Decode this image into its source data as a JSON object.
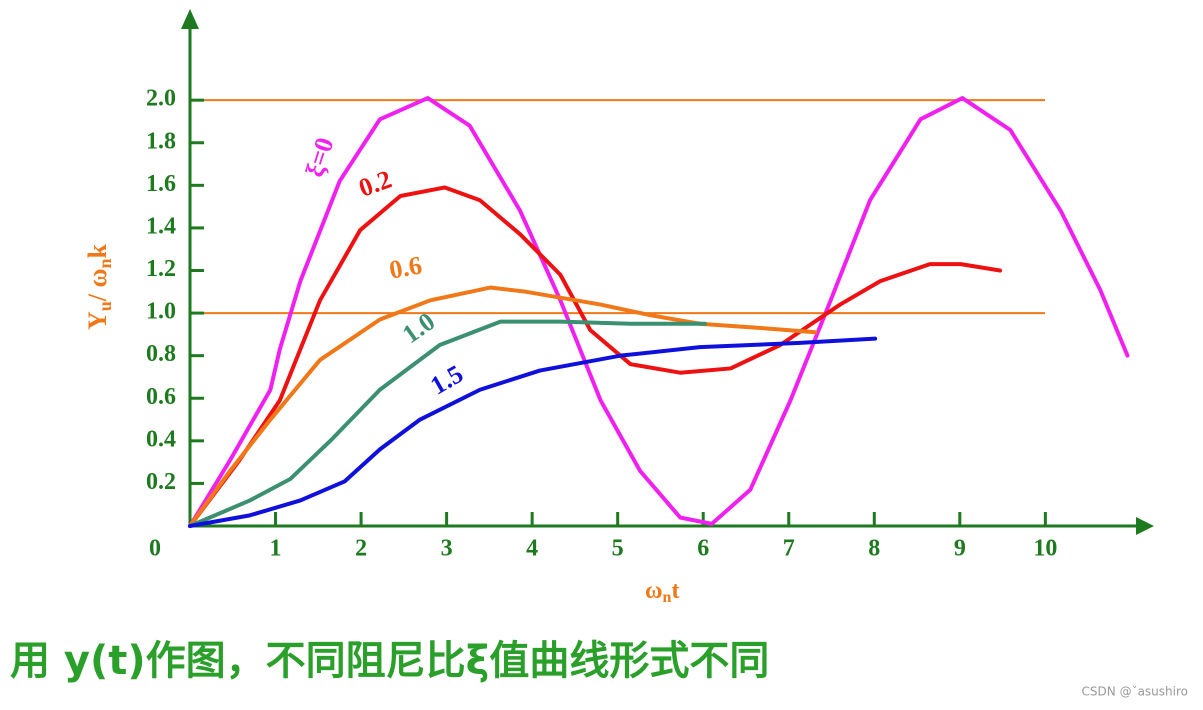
{
  "chart_data": {
    "type": "line",
    "x_label": [
      "ω",
      "n",
      "t"
    ],
    "y_label": [
      "Y",
      "u",
      "/ ω",
      "n",
      "k"
    ],
    "xlim": [
      0,
      11.2
    ],
    "ylim": [
      0,
      2.4
    ],
    "xticks": [
      0,
      1,
      2,
      3,
      4,
      5,
      6,
      7,
      8,
      9,
      10
    ],
    "yticks": [
      0.2,
      0.4,
      0.6,
      0.8,
      {
        "value": 1,
        "label": "1.0"
      },
      1.2,
      1.4,
      1.6,
      1.8,
      {
        "value": 2,
        "label": "2.0"
      }
    ],
    "reference_lines": [
      1,
      2
    ],
    "reference_color": "#f07818",
    "axis_color": "#1e7a1e",
    "series": [
      {
        "name": "ξ=0",
        "color": "#f020f0",
        "x": [
          0,
          0.47,
          0.94,
          1.05,
          1.29,
          1.75,
          2.22,
          2.78,
          3.27,
          3.86,
          4.33,
          4.8,
          5.26,
          5.73,
          6.1,
          6.55,
          7.02,
          7.49,
          7.95,
          8.54,
          9.03,
          9.59,
          10.18,
          10.64,
          10.96
        ],
        "values": [
          0,
          0.31,
          0.64,
          0.83,
          1.15,
          1.62,
          1.91,
          2.01,
          1.88,
          1.48,
          1.06,
          0.59,
          0.26,
          0.04,
          0.01,
          0.17,
          0.59,
          1.06,
          1.53,
          1.91,
          2.01,
          1.86,
          1.48,
          1.11,
          0.8
        ]
      },
      {
        "name": "0.2",
        "color": "#ee1111",
        "x": [
          0,
          0.58,
          1.05,
          1.29,
          1.52,
          1.99,
          2.46,
          2.98,
          3.39,
          3.86,
          4.33,
          4.68,
          5.15,
          5.73,
          6.32,
          6.9,
          7.6,
          8.07,
          8.65,
          9.01,
          9.47
        ],
        "values": [
          0,
          0.31,
          0.59,
          0.83,
          1.06,
          1.39,
          1.55,
          1.59,
          1.53,
          1.37,
          1.18,
          0.92,
          0.76,
          0.72,
          0.74,
          0.85,
          1.04,
          1.15,
          1.23,
          1.23,
          1.2
        ]
      },
      {
        "name": "0.6",
        "color": "#f07818",
        "x": [
          0,
          0.47,
          0.94,
          1.52,
          2.22,
          2.81,
          3.51,
          3.93,
          4.8,
          5.38,
          5.96,
          6.67,
          7.31
        ],
        "values": [
          0,
          0.26,
          0.5,
          0.78,
          0.97,
          1.06,
          1.12,
          1.1,
          1.04,
          0.99,
          0.95,
          0.93,
          0.91
        ]
      },
      {
        "name": "1.0",
        "color": "#3a9070",
        "x": [
          0,
          0.7,
          1.17,
          1.64,
          2.22,
          2.92,
          3.63,
          4.33,
          5.15,
          6.02
        ],
        "values": [
          0,
          0.12,
          0.22,
          0.4,
          0.64,
          0.85,
          0.96,
          0.96,
          0.95,
          0.95
        ]
      },
      {
        "name": "1.5",
        "color": "#1010dd",
        "x": [
          0,
          0.7,
          1.29,
          1.81,
          2.22,
          2.69,
          3.39,
          4.09,
          5.03,
          5.96,
          7.13,
          8.01
        ],
        "values": [
          0,
          0.05,
          0.12,
          0.21,
          0.36,
          0.5,
          0.64,
          0.73,
          0.8,
          0.84,
          0.86,
          0.88
        ]
      }
    ]
  },
  "caption": "用 y(t)作图，不同阻尼比ξ值曲线形式不同",
  "watermark": "CSDN @ˇasushiro"
}
